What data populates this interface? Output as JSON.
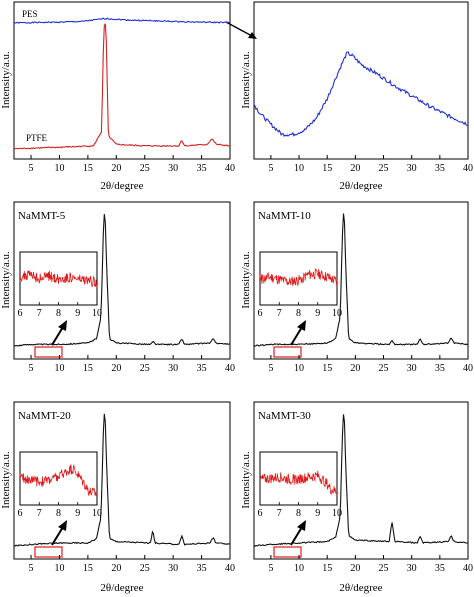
{
  "axis_text": {
    "xlabel": "2θ/degree",
    "ylabel": "Intensity/a.u.",
    "inset_ticks": [
      "6",
      "7",
      "8",
      "9",
      "10"
    ]
  },
  "chart_data": [
    {
      "type": "line",
      "title": "",
      "xlabel": "2θ/degree",
      "ylabel": "Intensity/a.u.",
      "xlim": [
        2,
        40
      ],
      "xticks": [
        5,
        10,
        15,
        20,
        25,
        30,
        35,
        40
      ],
      "series": [
        {
          "name": "PES",
          "color": "#1f2fd6",
          "x": [
            2,
            10,
            14,
            16,
            18,
            20,
            22,
            26,
            30,
            35,
            40
          ],
          "y": [
            0.91,
            0.915,
            0.92,
            0.93,
            0.94,
            0.935,
            0.93,
            0.925,
            0.92,
            0.915,
            0.912
          ]
        },
        {
          "name": "PTFE",
          "color": "#d62020",
          "x": [
            2,
            10,
            16,
            17.4,
            17.8,
            18.0,
            18.2,
            18.6,
            20,
            25,
            31,
            31.5,
            32,
            36,
            36.8,
            37.6,
            40
          ],
          "y": [
            0.03,
            0.04,
            0.05,
            0.15,
            0.85,
            0.93,
            0.85,
            0.12,
            0.06,
            0.05,
            0.05,
            0.09,
            0.05,
            0.06,
            0.1,
            0.06,
            0.05
          ]
        }
      ]
    },
    {
      "type": "line",
      "title": "",
      "xlabel": "2θ/degree",
      "ylabel": "Intensity/a.u.",
      "xlim": [
        2,
        40
      ],
      "xticks": [
        5,
        10,
        15,
        20,
        25,
        30,
        35,
        40
      ],
      "series": [
        {
          "name": "",
          "color": "#1f2fd6",
          "x": [
            2,
            3,
            5,
            7,
            9,
            11,
            13,
            15,
            17,
            18.5,
            19.5,
            21,
            24,
            27,
            30,
            33,
            36,
            40
          ],
          "y": [
            0.34,
            0.28,
            0.2,
            0.13,
            0.13,
            0.16,
            0.24,
            0.38,
            0.57,
            0.7,
            0.68,
            0.62,
            0.55,
            0.47,
            0.4,
            0.33,
            0.27,
            0.2
          ]
        }
      ]
    },
    {
      "type": "line",
      "label": "NaMMT-5",
      "xlabel": "2θ/degree",
      "ylabel": "Intensity/a.u.",
      "xlim": [
        2,
        40
      ],
      "xticks": [
        5,
        10,
        15,
        20,
        25,
        30,
        35,
        40
      ],
      "series": [
        {
          "color": "#111111",
          "x": [
            2,
            5,
            10,
            15,
            16.5,
            17.3,
            17.8,
            18.0,
            18.3,
            18.8,
            20,
            26,
            26.5,
            27,
            31,
            31.5,
            32,
            36.5,
            37,
            37.5,
            40
          ],
          "y": [
            0.05,
            0.06,
            0.06,
            0.07,
            0.1,
            0.25,
            0.95,
            1.0,
            0.6,
            0.1,
            0.07,
            0.06,
            0.08,
            0.06,
            0.06,
            0.1,
            0.06,
            0.07,
            0.1,
            0.07,
            0.06
          ]
        }
      ],
      "inset": {
        "xlim": [
          6,
          10
        ],
        "xticks": [
          6,
          7,
          8,
          9,
          10
        ],
        "color": "#e01a1a",
        "x": [
          6,
          6.5,
          7,
          7.5,
          8,
          8.5,
          9,
          9.5,
          10
        ],
        "y": [
          0.55,
          0.6,
          0.52,
          0.58,
          0.5,
          0.55,
          0.5,
          0.47,
          0.45
        ]
      }
    },
    {
      "type": "line",
      "label": "NaMMT-10",
      "xlabel": "2θ/degree",
      "ylabel": "Intensity/a.u.",
      "xlim": [
        2,
        40
      ],
      "xticks": [
        5,
        10,
        15,
        20,
        25,
        30,
        35,
        40
      ],
      "series": [
        {
          "color": "#111111",
          "x": [
            2,
            5,
            10,
            15,
            16.5,
            17.3,
            17.8,
            18.0,
            18.3,
            18.8,
            20,
            26,
            26.5,
            27,
            31,
            31.5,
            32,
            36.5,
            37,
            37.5,
            40
          ],
          "y": [
            0.05,
            0.06,
            0.06,
            0.07,
            0.1,
            0.25,
            0.95,
            1.0,
            0.6,
            0.1,
            0.07,
            0.06,
            0.09,
            0.06,
            0.06,
            0.1,
            0.06,
            0.07,
            0.11,
            0.07,
            0.06
          ]
        }
      ],
      "inset": {
        "xlim": [
          6,
          10
        ],
        "xticks": [
          6,
          7,
          8,
          9,
          10
        ],
        "color": "#e01a1a",
        "x": [
          6,
          6.5,
          7,
          7.5,
          8,
          8.5,
          9,
          9.5,
          10
        ],
        "y": [
          0.5,
          0.55,
          0.5,
          0.45,
          0.48,
          0.6,
          0.62,
          0.55,
          0.45
        ]
      }
    },
    {
      "type": "line",
      "label": "NaMMT-20",
      "xlabel": "2θ/degree",
      "ylabel": "Intensity/a.u.",
      "xlim": [
        2,
        40
      ],
      "xticks": [
        5,
        10,
        15,
        20,
        25,
        30,
        35,
        40
      ],
      "series": [
        {
          "color": "#111111",
          "x": [
            2,
            5,
            10,
            15,
            16.5,
            17.3,
            17.8,
            18.0,
            18.3,
            18.8,
            20,
            26,
            26.4,
            26.8,
            31,
            31.5,
            32,
            36.5,
            37,
            37.5,
            40
          ],
          "y": [
            0.05,
            0.06,
            0.07,
            0.07,
            0.1,
            0.25,
            0.95,
            1.0,
            0.6,
            0.1,
            0.08,
            0.07,
            0.16,
            0.07,
            0.06,
            0.12,
            0.06,
            0.07,
            0.11,
            0.07,
            0.06
          ]
        }
      ],
      "inset": {
        "xlim": [
          6,
          10
        ],
        "xticks": [
          6,
          7,
          8,
          9,
          10
        ],
        "color": "#e01a1a",
        "x": [
          6,
          6.5,
          7,
          7.5,
          8,
          8.5,
          8.8,
          9.2,
          9.6,
          10
        ],
        "y": [
          0.55,
          0.5,
          0.45,
          0.5,
          0.55,
          0.7,
          0.72,
          0.5,
          0.25,
          0.2
        ]
      }
    },
    {
      "type": "line",
      "label": "NaMMT-30",
      "xlabel": "2θ/degree",
      "ylabel": "Intensity/a.u.",
      "xlim": [
        2,
        40
      ],
      "xticks": [
        5,
        10,
        15,
        20,
        25,
        30,
        35,
        40
      ],
      "series": [
        {
          "color": "#111111",
          "x": [
            2,
            5,
            10,
            15,
            16.5,
            17.3,
            17.8,
            18.0,
            18.3,
            18.8,
            20,
            26,
            26.5,
            27,
            31,
            31.5,
            32,
            36.5,
            37,
            37.5,
            40
          ],
          "y": [
            0.05,
            0.06,
            0.07,
            0.08,
            0.11,
            0.25,
            0.95,
            1.0,
            0.6,
            0.12,
            0.09,
            0.08,
            0.22,
            0.08,
            0.07,
            0.12,
            0.07,
            0.08,
            0.12,
            0.08,
            0.07
          ]
        }
      ],
      "inset": {
        "xlim": [
          6,
          10
        ],
        "xticks": [
          6,
          7,
          8,
          9,
          10
        ],
        "color": "#e01a1a",
        "x": [
          6,
          6.5,
          7,
          7.5,
          8,
          8.5,
          9,
          9.4,
          9.7,
          10
        ],
        "y": [
          0.5,
          0.52,
          0.55,
          0.5,
          0.5,
          0.55,
          0.58,
          0.45,
          0.28,
          0.25
        ]
      }
    }
  ]
}
